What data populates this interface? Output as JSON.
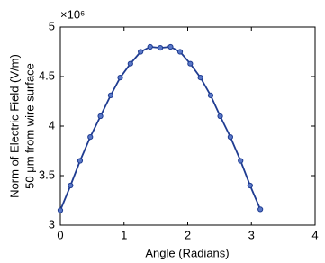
{
  "chart_data": {
    "type": "line",
    "ylabel": [
      "Norm of Electric Field (V/m)",
      "50 μm from wire surface"
    ],
    "xlabel": "Angle (Radians)",
    "y_multiplier": "×10⁶",
    "x": [
      0,
      0.16,
      0.31,
      0.47,
      0.63,
      0.79,
      0.94,
      1.1,
      1.26,
      1.41,
      1.57,
      1.73,
      1.88,
      2.04,
      2.2,
      2.36,
      2.51,
      2.67,
      2.83,
      2.98,
      3.14
    ],
    "series": [
      {
        "color": "#1f3c91",
        "values": [
          3.15,
          3.4,
          3.65,
          3.89,
          4.1,
          4.31,
          4.49,
          4.63,
          4.75,
          4.8,
          4.79,
          4.8,
          4.75,
          4.63,
          4.49,
          4.31,
          4.1,
          3.89,
          3.65,
          3.4,
          3.16
        ]
      }
    ],
    "xlim": [
      0,
      4
    ],
    "xticks": [
      0,
      1,
      2,
      3,
      4
    ],
    "ylim": [
      3,
      5
    ],
    "yticks": [
      3,
      3.5,
      4,
      4.5,
      5
    ],
    "grid": false
  }
}
